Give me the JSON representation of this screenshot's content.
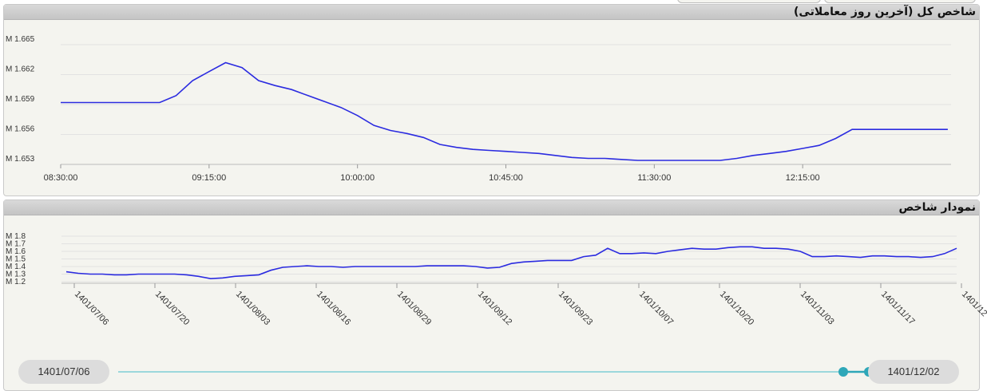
{
  "panels": {
    "intraday": {
      "title": "شاخص کل (آخرین روز معاملاتی)"
    },
    "history": {
      "title": "نمودار شاخص"
    }
  },
  "range": {
    "start_label": "1401/07/06",
    "end_label": "1401/12/02",
    "selected_fraction": [
      0.97,
      1.0
    ],
    "track_color": "#7ecfd6",
    "handle_color": "#2ea7b8"
  },
  "chart_data": [
    {
      "type": "line",
      "title": "شاخص کل (آخرین روز معاملاتی)",
      "line_color": "#2b2be0",
      "grid": true,
      "x_ticks": [
        "08:30:00",
        "09:15:00",
        "10:00:00",
        "10:45:00",
        "11:30:00",
        "12:15:00"
      ],
      "y_ticks": [
        "M 1.653",
        "M 1.656",
        "M 1.659",
        "M 1.662",
        "M 1.665"
      ],
      "ylim": [
        1.653,
        1.665
      ],
      "xlim_minutes": [
        510,
        780
      ],
      "x": [
        "08:30",
        "08:45",
        "09:00",
        "09:05",
        "09:10",
        "09:15",
        "09:20",
        "09:25",
        "09:30",
        "09:35",
        "09:40",
        "09:45",
        "09:50",
        "09:55",
        "10:00",
        "10:05",
        "10:10",
        "10:15",
        "10:20",
        "10:25",
        "10:30",
        "10:35",
        "10:40",
        "10:45",
        "10:50",
        "10:55",
        "11:00",
        "11:05",
        "11:10",
        "11:15",
        "11:20",
        "11:25",
        "11:30",
        "11:35",
        "11:40",
        "11:45",
        "11:50",
        "11:55",
        "12:00",
        "12:05",
        "12:10",
        "12:15",
        "12:20",
        "12:25",
        "12:30",
        "12:45",
        "12:59"
      ],
      "values": [
        1.6592,
        1.6592,
        1.6592,
        1.6599,
        1.6614,
        1.6623,
        1.6632,
        1.6627,
        1.6614,
        1.6609,
        1.6605,
        1.6599,
        1.6593,
        1.6587,
        1.6579,
        1.6569,
        1.6564,
        1.6561,
        1.6557,
        1.655,
        1.6547,
        1.6545,
        1.6544,
        1.6543,
        1.6542,
        1.6541,
        1.6539,
        1.6537,
        1.6536,
        1.6536,
        1.6535,
        1.6534,
        1.6534,
        1.6534,
        1.6534,
        1.6534,
        1.6534,
        1.6536,
        1.6539,
        1.6541,
        1.6543,
        1.6546,
        1.6549,
        1.6556,
        1.6565,
        1.6565,
        1.6565
      ]
    },
    {
      "type": "line",
      "title": "نمودار شاخص",
      "line_color": "#2b2be0",
      "grid": true,
      "x_ticks": [
        "1401/07/06",
        "1401/07/20",
        "1401/08/03",
        "1401/08/16",
        "1401/08/29",
        "1401/09/12",
        "1401/09/23",
        "1401/10/07",
        "1401/10/20",
        "1401/11/03",
        "1401/11/17",
        "1401/12"
      ],
      "y_ticks": [
        "M 1.2",
        "M 1.3",
        "M 1.4",
        "M 1.5",
        "M 1.6",
        "M 1.7",
        "M 1.8"
      ],
      "ylim": [
        1.2,
        1.8
      ],
      "values": [
        1.33,
        1.31,
        1.3,
        1.3,
        1.29,
        1.29,
        1.3,
        1.3,
        1.3,
        1.3,
        1.29,
        1.27,
        1.24,
        1.25,
        1.27,
        1.28,
        1.29,
        1.35,
        1.39,
        1.4,
        1.41,
        1.4,
        1.4,
        1.39,
        1.4,
        1.4,
        1.4,
        1.4,
        1.4,
        1.4,
        1.41,
        1.41,
        1.41,
        1.41,
        1.4,
        1.38,
        1.39,
        1.44,
        1.46,
        1.47,
        1.48,
        1.48,
        1.48,
        1.53,
        1.55,
        1.64,
        1.57,
        1.57,
        1.58,
        1.57,
        1.6,
        1.62,
        1.64,
        1.63,
        1.63,
        1.65,
        1.66,
        1.66,
        1.64,
        1.64,
        1.63,
        1.6,
        1.53,
        1.53,
        1.54,
        1.53,
        1.52,
        1.54,
        1.54,
        1.53,
        1.53,
        1.52,
        1.53,
        1.57,
        1.64
      ]
    }
  ]
}
